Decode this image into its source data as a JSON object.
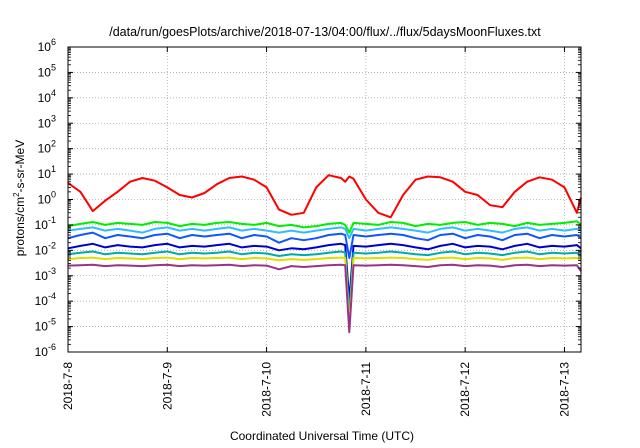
{
  "chart_data": {
    "type": "line",
    "title": "/data/run/goesPlots/archive/2018-07-13/04:00/flux/../flux/5daysMoonFluxes.txt",
    "xlabel": "Coordinated Universal Time (UTC)",
    "ylabel_parts": [
      "protons/cm",
      "2",
      "-s-sr-MeV"
    ],
    "y_scale": "log",
    "ylim": [
      1e-06,
      1000000.0
    ],
    "y_ticks": [
      {
        "exp": "-6",
        "value": 1e-06
      },
      {
        "exp": "-5",
        "value": 1e-05
      },
      {
        "exp": "-4",
        "value": 0.0001
      },
      {
        "exp": "-3",
        "value": 0.001
      },
      {
        "exp": "-2",
        "value": 0.01
      },
      {
        "exp": "-1",
        "value": 0.1
      },
      {
        "exp": "0",
        "value": 1
      },
      {
        "exp": "1",
        "value": 10
      },
      {
        "exp": "2",
        "value": 100
      },
      {
        "exp": "3",
        "value": 1000
      },
      {
        "exp": "4",
        "value": 10000.0
      },
      {
        "exp": "5",
        "value": 100000.0
      },
      {
        "exp": "6",
        "value": 1000000.0
      }
    ],
    "y_tick_base": "10",
    "xlim": [
      "2018-07-08T00:00",
      "2018-07-13T04:00"
    ],
    "x_ticks": [
      {
        "label": "2018-7-8",
        "date": "2018-07-08T00:00"
      },
      {
        "label": "2018-7-9",
        "date": "2018-07-09T00:00"
      },
      {
        "label": "2018-7-10",
        "date": "2018-07-10T00:00"
      },
      {
        "label": "2018-7-11",
        "date": "2018-07-11T00:00"
      },
      {
        "label": "2018-7-12",
        "date": "2018-07-12T00:00"
      },
      {
        "label": "2018-7-13",
        "date": "2018-07-13T00:00"
      }
    ],
    "grid": true,
    "legend": "none",
    "x": [
      "2018-07-08T00:00",
      "2018-07-08T03:00",
      "2018-07-08T06:00",
      "2018-07-08T09:00",
      "2018-07-08T12:00",
      "2018-07-08T15:00",
      "2018-07-08T18:00",
      "2018-07-08T21:00",
      "2018-07-09T00:00",
      "2018-07-09T03:00",
      "2018-07-09T06:00",
      "2018-07-09T09:00",
      "2018-07-09T12:00",
      "2018-07-09T15:00",
      "2018-07-09T18:00",
      "2018-07-09T21:00",
      "2018-07-10T00:00",
      "2018-07-10T03:00",
      "2018-07-10T06:00",
      "2018-07-10T09:00",
      "2018-07-10T12:00",
      "2018-07-10T15:00",
      "2018-07-10T18:00",
      "2018-07-10T19:00",
      "2018-07-10T20:00",
      "2018-07-10T21:00",
      "2018-07-11T00:00",
      "2018-07-11T03:00",
      "2018-07-11T06:00",
      "2018-07-11T09:00",
      "2018-07-11T12:00",
      "2018-07-11T15:00",
      "2018-07-11T18:00",
      "2018-07-11T21:00",
      "2018-07-12T00:00",
      "2018-07-12T03:00",
      "2018-07-12T06:00",
      "2018-07-12T09:00",
      "2018-07-12T12:00",
      "2018-07-12T15:00",
      "2018-07-12T18:00",
      "2018-07-12T21:00",
      "2018-07-13T00:00",
      "2018-07-13T03:00",
      "2018-07-13T04:00"
    ],
    "series": [
      {
        "color": "#ff0000",
        "values": [
          4.5,
          2,
          0.35,
          0.9,
          2,
          5,
          7,
          5.5,
          3,
          1.5,
          1.2,
          1.8,
          4,
          7,
          8,
          6,
          3,
          0.4,
          0.25,
          0.3,
          3,
          9,
          7,
          5,
          8,
          6.5,
          1,
          0.3,
          0.2,
          1.5,
          6,
          8,
          7.5,
          5,
          2,
          1.5,
          0.6,
          0.5,
          2,
          5,
          7.5,
          6,
          3,
          0.3,
          1.2
        ]
      },
      {
        "color": "#00ee00",
        "values": [
          0.09,
          0.11,
          0.13,
          0.1,
          0.12,
          0.11,
          0.1,
          0.13,
          0.12,
          0.09,
          0.11,
          0.1,
          0.12,
          0.13,
          0.11,
          0.1,
          0.12,
          0.09,
          0.1,
          0.08,
          0.09,
          0.11,
          0.12,
          0.1,
          0.05,
          0.12,
          0.11,
          0.1,
          0.13,
          0.12,
          0.09,
          0.11,
          0.1,
          0.12,
          0.13,
          0.1,
          0.12,
          0.11,
          0.09,
          0.12,
          0.1,
          0.11,
          0.12,
          0.14,
          0.1
        ]
      },
      {
        "color": "#33bbff",
        "values": [
          0.06,
          0.07,
          0.08,
          0.06,
          0.07,
          0.06,
          0.05,
          0.07,
          0.08,
          0.06,
          0.07,
          0.06,
          0.07,
          0.08,
          0.06,
          0.07,
          0.06,
          0.05,
          0.06,
          0.05,
          0.06,
          0.07,
          0.08,
          0.07,
          0.03,
          0.07,
          0.06,
          0.07,
          0.08,
          0.07,
          0.06,
          0.05,
          0.07,
          0.08,
          0.06,
          0.07,
          0.06,
          0.05,
          0.07,
          0.08,
          0.06,
          0.07,
          0.06,
          0.07,
          0.06
        ]
      },
      {
        "color": "#1155ff",
        "values": [
          0.03,
          0.04,
          0.05,
          0.03,
          0.04,
          0.035,
          0.03,
          0.04,
          0.045,
          0.03,
          0.04,
          0.035,
          0.04,
          0.045,
          0.03,
          0.04,
          0.035,
          0.02,
          0.03,
          0.025,
          0.03,
          0.04,
          0.045,
          0.04,
          0.005,
          0.04,
          0.035,
          0.04,
          0.045,
          0.04,
          0.03,
          0.025,
          0.04,
          0.045,
          0.03,
          0.04,
          0.035,
          0.025,
          0.04,
          0.045,
          0.03,
          0.04,
          0.035,
          0.04,
          0.03
        ]
      },
      {
        "color": "#0000cc",
        "values": [
          0.012,
          0.015,
          0.018,
          0.013,
          0.016,
          0.014,
          0.013,
          0.016,
          0.018,
          0.013,
          0.015,
          0.014,
          0.016,
          0.018,
          0.013,
          0.015,
          0.014,
          0.01,
          0.012,
          0.011,
          0.013,
          0.016,
          0.018,
          0.016,
          0.0001,
          0.015,
          0.014,
          0.016,
          0.018,
          0.016,
          0.013,
          0.011,
          0.015,
          0.018,
          0.013,
          0.015,
          0.014,
          0.011,
          0.015,
          0.018,
          0.013,
          0.015,
          0.014,
          0.016,
          0.012
        ]
      },
      {
        "color": "#00aaaa",
        "values": [
          0.007,
          0.008,
          0.009,
          0.007,
          0.008,
          0.0075,
          0.007,
          0.008,
          0.009,
          0.007,
          0.008,
          0.0075,
          0.008,
          0.009,
          0.007,
          0.008,
          0.0075,
          0.006,
          0.007,
          0.0065,
          0.007,
          0.008,
          0.009,
          0.008,
          3e-05,
          0.008,
          0.0075,
          0.008,
          0.009,
          0.008,
          0.007,
          0.0065,
          0.008,
          0.009,
          0.007,
          0.008,
          0.0075,
          0.0065,
          0.008,
          0.009,
          0.007,
          0.008,
          0.0075,
          0.008,
          0.006
        ]
      },
      {
        "color": "#dddd00",
        "values": [
          0.0045,
          0.005,
          0.0052,
          0.0045,
          0.005,
          0.0048,
          0.0045,
          0.005,
          0.0052,
          0.0045,
          0.005,
          0.0048,
          0.005,
          0.0052,
          0.0045,
          0.005,
          0.0048,
          0.004,
          0.0045,
          0.0042,
          0.0045,
          0.005,
          0.0052,
          0.005,
          1e-05,
          0.005,
          0.0048,
          0.005,
          0.0052,
          0.005,
          0.0045,
          0.0042,
          0.005,
          0.0052,
          0.0045,
          0.005,
          0.0048,
          0.0042,
          0.005,
          0.0052,
          0.0045,
          0.005,
          0.0048,
          0.005,
          0.004
        ]
      },
      {
        "color": "#993388",
        "values": [
          0.0025,
          0.0026,
          0.0027,
          0.0024,
          0.0026,
          0.0025,
          0.0024,
          0.0026,
          0.0027,
          0.0024,
          0.0026,
          0.0025,
          0.0026,
          0.0027,
          0.0024,
          0.0026,
          0.0025,
          0.0018,
          0.0024,
          0.0022,
          0.0024,
          0.0026,
          0.0027,
          0.0026,
          6e-06,
          0.0026,
          0.0025,
          0.0026,
          0.0027,
          0.0026,
          0.0024,
          0.0022,
          0.0026,
          0.0027,
          0.0024,
          0.0026,
          0.0025,
          0.0022,
          0.0026,
          0.0027,
          0.0024,
          0.0026,
          0.0025,
          0.0026,
          0.0015
        ]
      }
    ]
  }
}
